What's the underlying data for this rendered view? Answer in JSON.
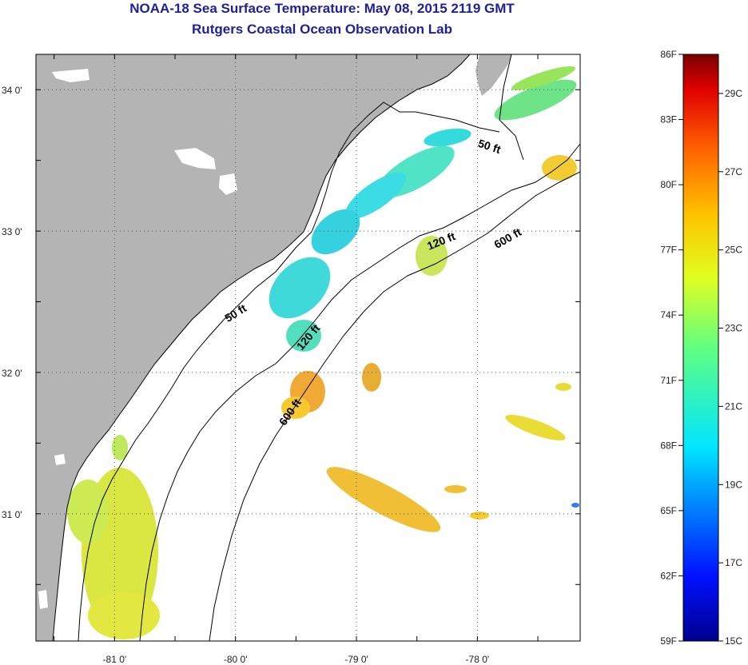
{
  "header": {
    "title": "NOAA-18 Sea Surface Temperature:  May 08, 2015 2119 GMT",
    "subtitle": "Rutgers Coastal Ocean Observation Lab"
  },
  "map": {
    "lon_range": [
      -81.65,
      -77.15
    ],
    "lat_range": [
      30.1,
      34.25
    ],
    "lat_ticks": [
      {
        "value": 34,
        "label": "34 0'"
      },
      {
        "value": 33,
        "label": "33 0'"
      },
      {
        "value": 32,
        "label": "32 0'"
      },
      {
        "value": 31,
        "label": "31 0'"
      }
    ],
    "lon_ticks": [
      {
        "value": -81,
        "label": "-81 0'"
      },
      {
        "value": -80,
        "label": "-80 0'"
      },
      {
        "value": -79,
        "label": "-79 0'"
      },
      {
        "value": -78,
        "label": "-78 0'"
      }
    ],
    "contours": [
      {
        "label": "50 ft",
        "label_pos": [
          -80.0,
          32.42
        ],
        "label_rot": -32
      },
      {
        "label": "50 ft",
        "label_pos": [
          -77.9,
          33.6
        ],
        "label_rot": 18
      },
      {
        "label": "120 ft",
        "label_pos": [
          -79.4,
          32.25
        ],
        "label_rot": -50
      },
      {
        "label": "120 ft",
        "label_pos": [
          -78.3,
          32.93
        ],
        "label_rot": -22
      },
      {
        "label": "600 ft",
        "label_pos": [
          -79.55,
          31.72
        ],
        "label_rot": -55
      },
      {
        "label": "600 ft",
        "label_pos": [
          -77.75,
          32.95
        ],
        "label_rot": -30
      }
    ],
    "colors": {
      "land": "#b4b4b4",
      "ocean": "#ffffff",
      "grid": "#555555"
    }
  },
  "colorbar": {
    "f_labels": [
      "86F",
      "83F",
      "80F",
      "77F",
      "74F",
      "71F",
      "68F",
      "65F",
      "62F",
      "59F"
    ],
    "c_labels": [
      {
        "value": 29,
        "label": "29C"
      },
      {
        "value": 27,
        "label": "27C"
      },
      {
        "value": 25,
        "label": "25C"
      },
      {
        "value": 23,
        "label": "23C"
      },
      {
        "value": 21,
        "label": "21C"
      },
      {
        "value": 19,
        "label": "19C"
      },
      {
        "value": 17,
        "label": "17C"
      },
      {
        "value": 15,
        "label": "15C"
      }
    ],
    "range_f": [
      59,
      86
    ]
  }
}
